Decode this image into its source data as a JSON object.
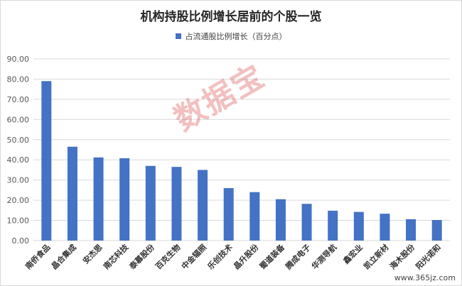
{
  "colors": {
    "bar": "#4472c4",
    "grid": "#d9d9d9",
    "axis_text": "#595959",
    "xlabel_text": "#333333"
  },
  "chart_data": {
    "type": "bar",
    "title": "机构持股比例增长居前的个股一览",
    "categories": [
      "南侨食品",
      "晶合集成",
      "安杰思",
      "南芯科技",
      "泰慕股份",
      "百克生物",
      "中金辐照",
      "乐创技术",
      "晶升股份",
      "蜀道装备",
      "腾成电子",
      "华测导航",
      "鑫宏业",
      "凯立新材",
      "海木股份",
      "阳光诺和"
    ],
    "series": [
      {
        "name": "占流通股比例增长（百分点）",
        "values": [
          79.0,
          46.5,
          41.2,
          40.8,
          37.0,
          36.5,
          35.0,
          26.0,
          24.0,
          20.5,
          18.2,
          14.8,
          14.2,
          13.3,
          10.6,
          10.2
        ]
      }
    ],
    "ylim": [
      0,
      90
    ],
    "yticks": [
      "0.00",
      "10.00",
      "20.00",
      "30.00",
      "40.00",
      "50.00",
      "60.00",
      "70.00",
      "80.00",
      "90.00"
    ],
    "grid": true,
    "legend_position": "top"
  },
  "watermark": "数据宝",
  "site_mark": "www.365jz.com"
}
